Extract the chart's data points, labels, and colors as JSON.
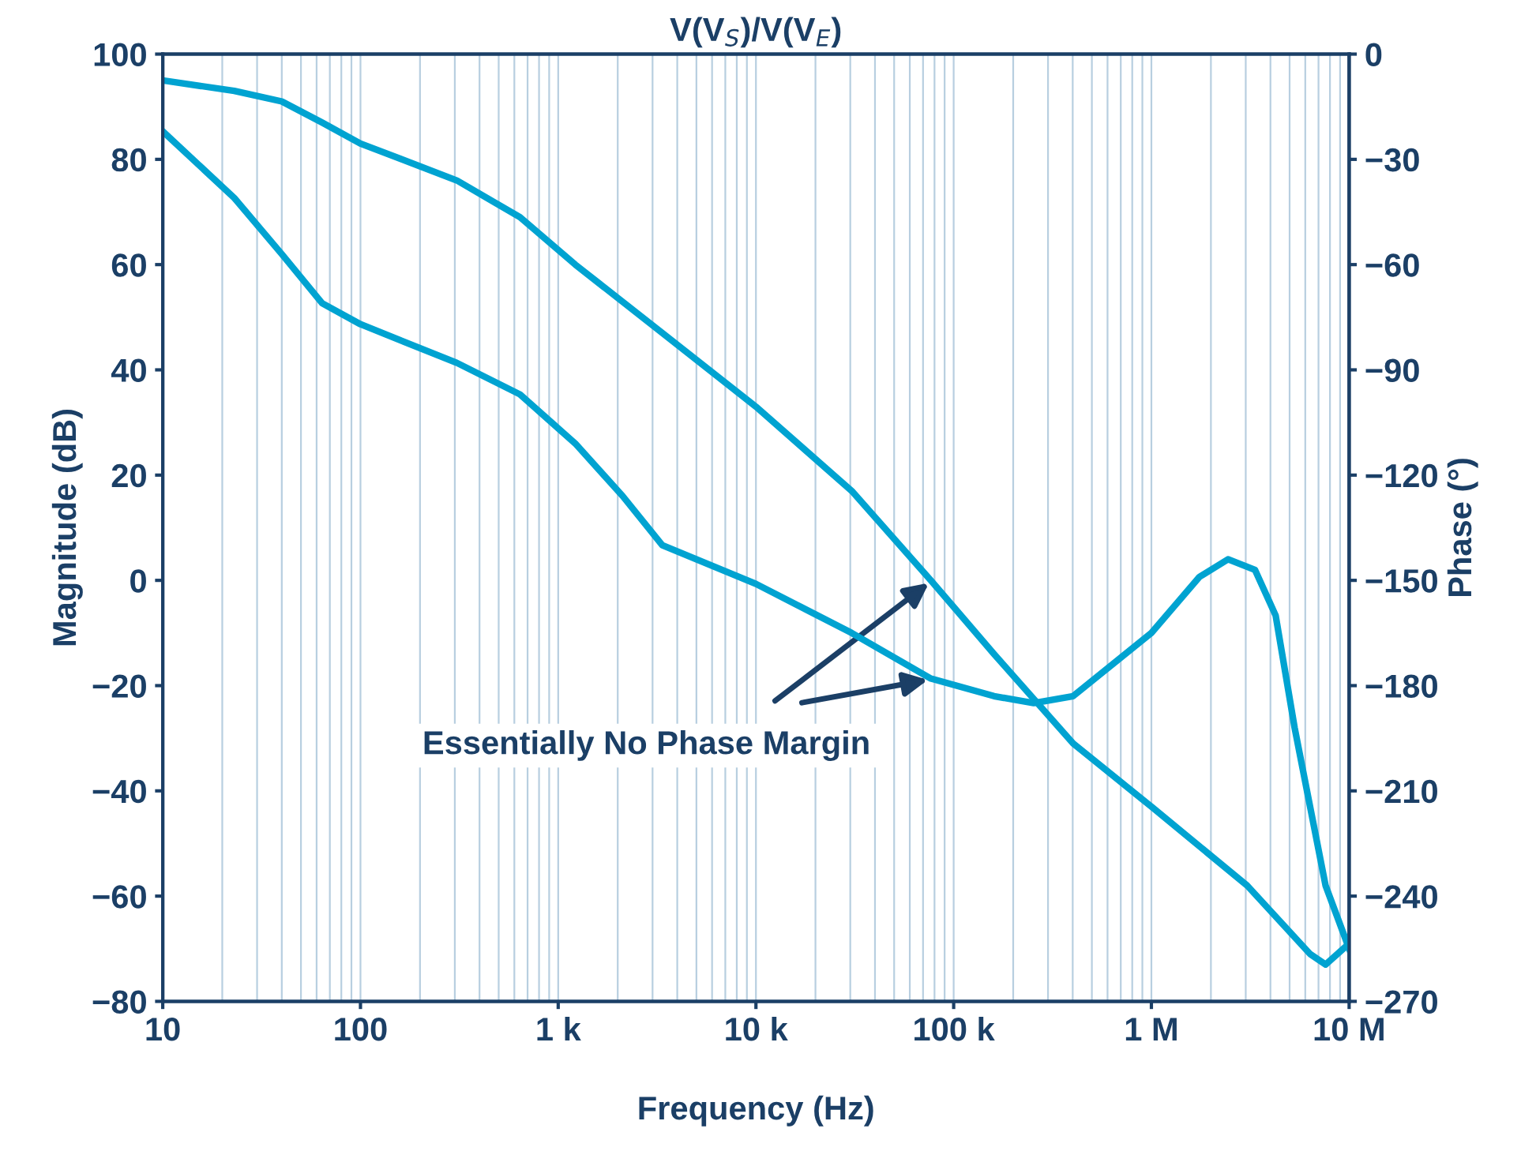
{
  "chart_data": {
    "type": "line",
    "title": "V(V$_{S}$)/V(V$_{E}$)",
    "xlabel": "Frequency (Hz)",
    "ylabel": "Magnitude (dB)",
    "y2label": "Phase (°)",
    "log": "x",
    "grid": "x",
    "legend": false,
    "line_style": "solid",
    "marker": "none",
    "xlim": [
      10,
      10000000
    ],
    "xticks": [
      {
        "value": 10,
        "label": "10"
      },
      {
        "value": 100,
        "label": "100"
      },
      {
        "value": 1000,
        "label": "1 k"
      },
      {
        "value": 10000,
        "label": "10 k"
      },
      {
        "value": 100000,
        "label": "100 k"
      },
      {
        "value": 1000000,
        "label": "1 M"
      },
      {
        "value": 10000000,
        "label": "10 M"
      }
    ],
    "ylim": [
      -80,
      100
    ],
    "yticks": [
      -80,
      -60,
      -40,
      -20,
      0,
      20,
      40,
      60,
      80,
      100
    ],
    "y2lim": [
      -270,
      0
    ],
    "y2ticks": [
      -270,
      -240,
      -210,
      -180,
      -150,
      -120,
      -90,
      -60,
      -30,
      0
    ],
    "series": [
      {
        "color": "#00a3d1",
        "x": [
          10,
          23,
          40,
          64,
          100,
          307,
          641,
          1220,
          3360,
          10000,
          30500,
          76700,
          160000,
          402000,
          1000000,
          3050000,
          6350000,
          7600000,
          10000000
        ],
        "values": [
          95,
          93,
          91,
          87,
          83,
          76,
          69,
          60,
          47,
          33,
          17,
          0,
          -14,
          -31,
          -43,
          -58,
          -71,
          -73,
          -69
        ]
      },
      {
        "color": "#00a3d1",
        "axis": "y2",
        "x": [
          10,
          23,
          40,
          64,
          100,
          307,
          641,
          1220,
          2120,
          3360,
          10000,
          30500,
          76700,
          160000,
          254000,
          402000,
          1000000,
          1750000,
          2440000,
          3340000,
          4250000,
          5300000,
          7600000,
          10000000
        ],
        "values": [
          -22,
          -41,
          -57,
          -71,
          -77,
          -88,
          -97,
          -111,
          -126,
          -140,
          -151,
          -165,
          -178,
          -183,
          -185,
          -183,
          -165,
          -149,
          -144,
          -147,
          -160,
          -192,
          -237,
          -255
        ]
      }
    ],
    "annotations": [
      {
        "text": "Essentially No Phase Margin",
        "x": 78000,
        "y": 0
      }
    ]
  }
}
